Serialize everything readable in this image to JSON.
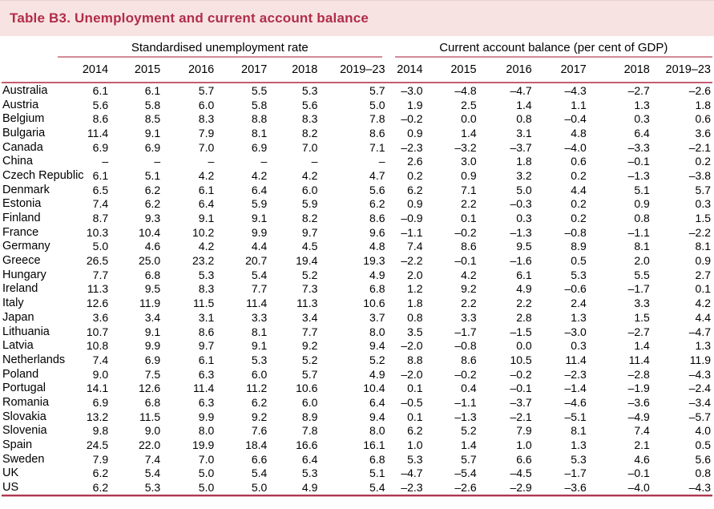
{
  "title": "Table B3. Unemployment and current account balance",
  "colors": {
    "banner_background": "#f7e4e2",
    "title_text": "#b22c4a",
    "group_underline": "#d18b98",
    "header_rule": "#c55d73",
    "bottom_rule_dark": "#ad3850",
    "bottom_rule_light": "#e3aeb7"
  },
  "table": {
    "group_headers": {
      "unemployment": "Standardised unemployment rate",
      "current_account": "Current account balance (per cent of GDP)"
    },
    "years": [
      "2014",
      "2015",
      "2016",
      "2017",
      "2018",
      "2019–23"
    ],
    "rows": [
      {
        "country": "Australia",
        "unemployment": [
          "6.1",
          "6.1",
          "5.7",
          "5.5",
          "5.3",
          "5.7"
        ],
        "current_account": [
          "–3.0",
          "–4.8",
          "–4.7",
          "–4.3",
          "–2.7",
          "–2.6"
        ]
      },
      {
        "country": "Austria",
        "unemployment": [
          "5.6",
          "5.8",
          "6.0",
          "5.8",
          "5.6",
          "5.0"
        ],
        "current_account": [
          "1.9",
          "2.5",
          "1.4",
          "1.1",
          "1.3",
          "1.8"
        ]
      },
      {
        "country": "Belgium",
        "unemployment": [
          "8.6",
          "8.5",
          "8.3",
          "8.8",
          "8.3",
          "7.8"
        ],
        "current_account": [
          "–0.2",
          "0.0",
          "0.8",
          "–0.4",
          "0.3",
          "0.6"
        ]
      },
      {
        "country": "Bulgaria",
        "unemployment": [
          "11.4",
          "9.1",
          "7.9",
          "8.1",
          "8.2",
          "8.6"
        ],
        "current_account": [
          "0.9",
          "1.4",
          "3.1",
          "4.8",
          "6.4",
          "3.6"
        ]
      },
      {
        "country": "Canada",
        "unemployment": [
          "6.9",
          "6.9",
          "7.0",
          "6.9",
          "7.0",
          "7.1"
        ],
        "current_account": [
          "–2.3",
          "–3.2",
          "–3.7",
          "–4.0",
          "–3.3",
          "–2.1"
        ]
      },
      {
        "country": "China",
        "unemployment": [
          "–",
          "–",
          "–",
          "–",
          "–",
          "–"
        ],
        "current_account": [
          "2.6",
          "3.0",
          "1.8",
          "0.6",
          "–0.1",
          "0.2"
        ]
      },
      {
        "country": "Czech Republic",
        "unemployment": [
          "6.1",
          "5.1",
          "4.2",
          "4.2",
          "4.2",
          "4.7"
        ],
        "current_account": [
          "0.2",
          "0.9",
          "3.2",
          "0.2",
          "–1.3",
          "–3.8"
        ]
      },
      {
        "country": "Denmark",
        "unemployment": [
          "6.5",
          "6.2",
          "6.1",
          "6.4",
          "6.0",
          "5.6"
        ],
        "current_account": [
          "6.2",
          "7.1",
          "5.0",
          "4.4",
          "5.1",
          "5.7"
        ]
      },
      {
        "country": "Estonia",
        "unemployment": [
          "7.4",
          "6.2",
          "6.4",
          "5.9",
          "5.9",
          "6.2"
        ],
        "current_account": [
          "0.9",
          "2.2",
          "–0.3",
          "0.2",
          "0.9",
          "0.3"
        ]
      },
      {
        "country": "Finland",
        "unemployment": [
          "8.7",
          "9.3",
          "9.1",
          "9.1",
          "8.2",
          "8.6"
        ],
        "current_account": [
          "–0.9",
          "0.1",
          "0.3",
          "0.2",
          "0.8",
          "1.5"
        ]
      },
      {
        "country": "France",
        "unemployment": [
          "10.3",
          "10.4",
          "10.2",
          "9.9",
          "9.7",
          "9.6"
        ],
        "current_account": [
          "–1.1",
          "–0.2",
          "–1.3",
          "–0.8",
          "–1.1",
          "–2.2"
        ]
      },
      {
        "country": "Germany",
        "unemployment": [
          "5.0",
          "4.6",
          "4.2",
          "4.4",
          "4.5",
          "4.8"
        ],
        "current_account": [
          "7.4",
          "8.6",
          "9.5",
          "8.9",
          "8.1",
          "8.1"
        ]
      },
      {
        "country": "Greece",
        "unemployment": [
          "26.5",
          "25.0",
          "23.2",
          "20.7",
          "19.4",
          "19.3"
        ],
        "current_account": [
          "–2.2",
          "–0.1",
          "–1.6",
          "0.5",
          "2.0",
          "0.9"
        ]
      },
      {
        "country": "Hungary",
        "unemployment": [
          "7.7",
          "6.8",
          "5.3",
          "5.4",
          "5.2",
          "4.9"
        ],
        "current_account": [
          "2.0",
          "4.2",
          "6.1",
          "5.3",
          "5.5",
          "2.7"
        ]
      },
      {
        "country": "Ireland",
        "unemployment": [
          "11.3",
          "9.5",
          "8.3",
          "7.7",
          "7.3",
          "6.8"
        ],
        "current_account": [
          "1.2",
          "9.2",
          "4.9",
          "–0.6",
          "–1.7",
          "0.1"
        ]
      },
      {
        "country": "Italy",
        "unemployment": [
          "12.6",
          "11.9",
          "11.5",
          "11.4",
          "11.3",
          "10.6"
        ],
        "current_account": [
          "1.8",
          "2.2",
          "2.2",
          "2.4",
          "3.3",
          "4.2"
        ]
      },
      {
        "country": "Japan",
        "unemployment": [
          "3.6",
          "3.4",
          "3.1",
          "3.3",
          "3.4",
          "3.7"
        ],
        "current_account": [
          "0.8",
          "3.3",
          "2.8",
          "1.3",
          "1.5",
          "4.4"
        ]
      },
      {
        "country": "Lithuania",
        "unemployment": [
          "10.7",
          "9.1",
          "8.6",
          "8.1",
          "7.7",
          "8.0"
        ],
        "current_account": [
          "3.5",
          "–1.7",
          "–1.5",
          "–3.0",
          "–2.7",
          "–4.7"
        ]
      },
      {
        "country": "Latvia",
        "unemployment": [
          "10.8",
          "9.9",
          "9.7",
          "9.1",
          "9.2",
          "9.4"
        ],
        "current_account": [
          "–2.0",
          "–0.8",
          "0.0",
          "0.3",
          "1.4",
          "1.3"
        ]
      },
      {
        "country": "Netherlands",
        "unemployment": [
          "7.4",
          "6.9",
          "6.1",
          "5.3",
          "5.2",
          "5.2"
        ],
        "current_account": [
          "8.8",
          "8.6",
          "10.5",
          "11.4",
          "11.4",
          "11.9"
        ]
      },
      {
        "country": "Poland",
        "unemployment": [
          "9.0",
          "7.5",
          "6.3",
          "6.0",
          "5.7",
          "4.9"
        ],
        "current_account": [
          "–2.0",
          "–0.2",
          "–0.2",
          "–2.3",
          "–2.8",
          "–4.3"
        ]
      },
      {
        "country": "Portugal",
        "unemployment": [
          "14.1",
          "12.6",
          "11.4",
          "11.2",
          "10.6",
          "10.4"
        ],
        "current_account": [
          "0.1",
          "0.4",
          "–0.1",
          "–1.4",
          "–1.9",
          "–2.4"
        ]
      },
      {
        "country": "Romania",
        "unemployment": [
          "6.9",
          "6.8",
          "6.3",
          "6.2",
          "6.0",
          "6.4"
        ],
        "current_account": [
          "–0.5",
          "–1.1",
          "–3.7",
          "–4.6",
          "–3.6",
          "–3.4"
        ]
      },
      {
        "country": "Slovakia",
        "unemployment": [
          "13.2",
          "11.5",
          "9.9",
          "9.2",
          "8.9",
          "9.4"
        ],
        "current_account": [
          "0.1",
          "–1.3",
          "–2.1",
          "–5.1",
          "–4.9",
          "–5.7"
        ]
      },
      {
        "country": "Slovenia",
        "unemployment": [
          "9.8",
          "9.0",
          "8.0",
          "7.6",
          "7.8",
          "8.0"
        ],
        "current_account": [
          "6.2",
          "5.2",
          "7.9",
          "8.1",
          "7.4",
          "4.0"
        ]
      },
      {
        "country": "Spain",
        "unemployment": [
          "24.5",
          "22.0",
          "19.9",
          "18.4",
          "16.6",
          "16.1"
        ],
        "current_account": [
          "1.0",
          "1.4",
          "1.0",
          "1.3",
          "2.1",
          "0.5"
        ]
      },
      {
        "country": "Sweden",
        "unemployment": [
          "7.9",
          "7.4",
          "7.0",
          "6.6",
          "6.4",
          "6.8"
        ],
        "current_account": [
          "5.3",
          "5.7",
          "6.6",
          "5.3",
          "4.6",
          "5.6"
        ]
      },
      {
        "country": "UK",
        "unemployment": [
          "6.2",
          "5.4",
          "5.0",
          "5.4",
          "5.3",
          "5.1"
        ],
        "current_account": [
          "–4.7",
          "–5.4",
          "–4.5",
          "–1.7",
          "–0.1",
          "0.8"
        ]
      },
      {
        "country": "US",
        "unemployment": [
          "6.2",
          "5.3",
          "5.0",
          "5.0",
          "4.9",
          "5.4"
        ],
        "current_account": [
          "–2.3",
          "–2.6",
          "–2.9",
          "–3.6",
          "–4.0",
          "–4.3"
        ]
      }
    ]
  }
}
